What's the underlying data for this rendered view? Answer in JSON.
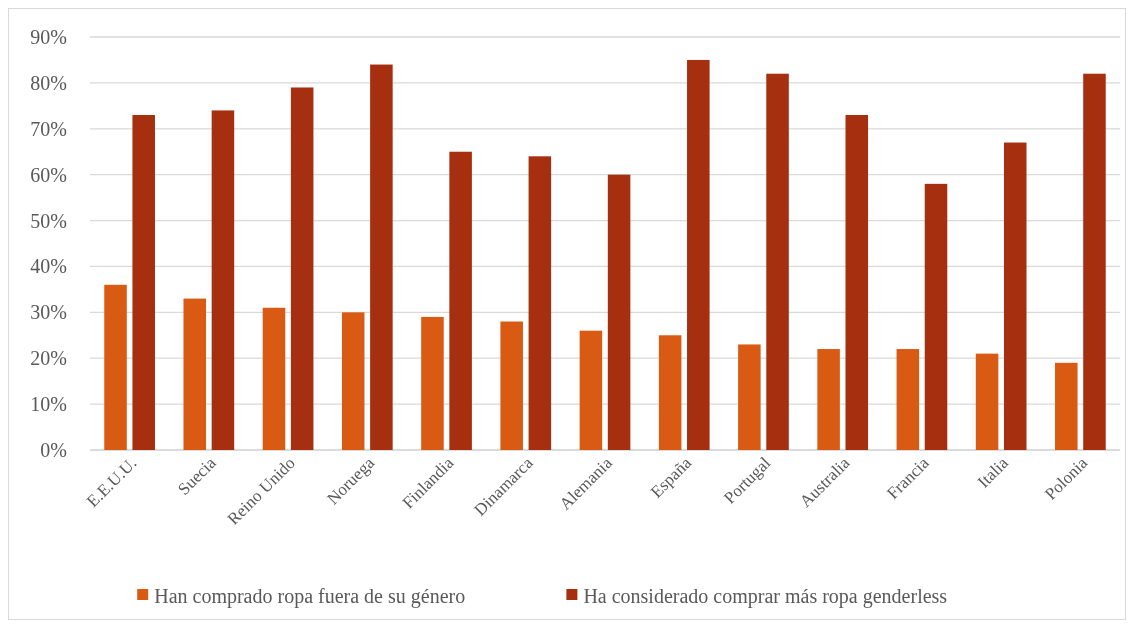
{
  "chart_data": {
    "type": "bar",
    "categories": [
      "E.E.U.U.",
      "Suecia",
      "Reino Unido",
      "Noruega",
      "Finlandia",
      "Dinamarca",
      "Alemania",
      "España",
      "Portugal",
      "Australia",
      "Francia",
      "Italia",
      "Polonia"
    ],
    "series": [
      {
        "name": "Han comprado ropa fuera de su género",
        "color": "#d95b13",
        "values": [
          36,
          33,
          31,
          30,
          29,
          28,
          26,
          25,
          23,
          22,
          22,
          21,
          19
        ]
      },
      {
        "name": "Ha considerado comprar más ropa genderless",
        "color": "#a52f0e",
        "values": [
          73,
          74,
          79,
          84,
          65,
          64,
          60,
          85,
          82,
          73,
          58,
          67,
          82
        ]
      }
    ],
    "ylim": [
      0,
      90
    ],
    "yticks": [
      {
        "value": 0,
        "label": "0%"
      },
      {
        "value": 10,
        "label": "10%"
      },
      {
        "value": 20,
        "label": "20%"
      },
      {
        "value": 30,
        "label": "30%"
      },
      {
        "value": 40,
        "label": "40%"
      },
      {
        "value": 50,
        "label": "50%"
      },
      {
        "value": 60,
        "label": "60%"
      },
      {
        "value": 70,
        "label": "70%"
      },
      {
        "value": 80,
        "label": "80%"
      },
      {
        "value": 90,
        "label": "90%"
      }
    ],
    "grid": "y",
    "legend": "bottom"
  }
}
